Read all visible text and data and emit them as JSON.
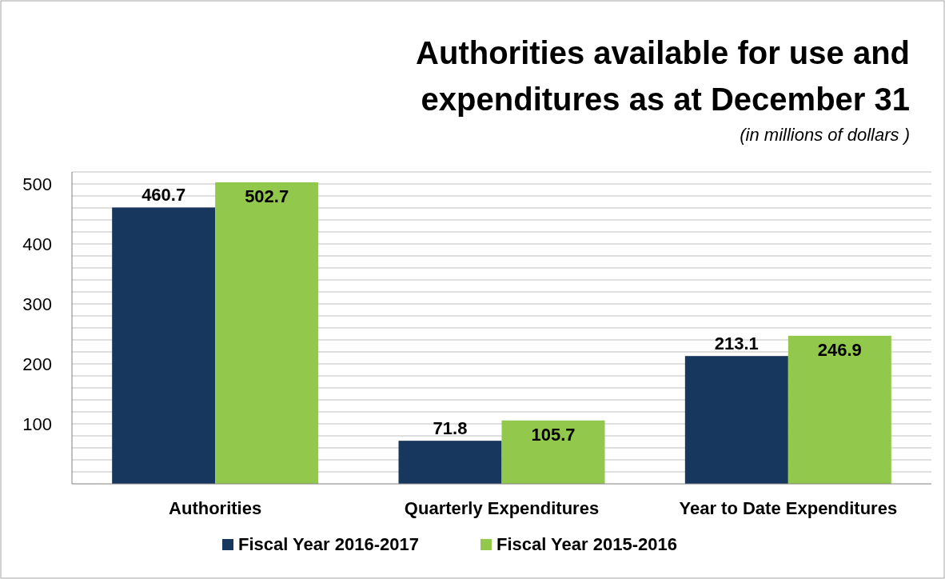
{
  "chart_data": {
    "type": "bar",
    "title": "Authorities available for use and expenditures as at December 31",
    "subtitle": "(in millions of dollars )",
    "categories": [
      "Authorities",
      "Quarterly Expenditures",
      "Year to Date Expenditures"
    ],
    "series": [
      {
        "name": "Fiscal Year 2016-2017",
        "color": "#17375e",
        "values": [
          460.7,
          71.8,
          213.1
        ]
      },
      {
        "name": "Fiscal Year 2015-2016",
        "color": "#92c84c",
        "values": [
          502.7,
          105.7,
          246.9
        ]
      }
    ],
    "ylim": [
      0,
      520
    ],
    "yticks": [
      {
        "value": 20,
        "label": null
      },
      {
        "value": 40,
        "label": null
      },
      {
        "value": 60,
        "label": null
      },
      {
        "value": 80,
        "label": null
      },
      100,
      {
        "value": 120,
        "label": null
      },
      {
        "value": 140,
        "label": null
      },
      {
        "value": 160,
        "label": null
      },
      {
        "value": 180,
        "label": null
      },
      200,
      {
        "value": 220,
        "label": null
      },
      {
        "value": 240,
        "label": null
      },
      {
        "value": 260,
        "label": null
      },
      {
        "value": 280,
        "label": null
      },
      300,
      {
        "value": 320,
        "label": null
      },
      {
        "value": 340,
        "label": null
      },
      {
        "value": 360,
        "label": null
      },
      {
        "value": 380,
        "label": null
      },
      400,
      {
        "value": 420,
        "label": null
      },
      {
        "value": 440,
        "label": null
      },
      {
        "value": 460,
        "label": null
      },
      {
        "value": 480,
        "label": null
      },
      500,
      {
        "value": 520,
        "label": null
      }
    ],
    "grid": true,
    "data_labels": true,
    "legend": "bottom"
  }
}
